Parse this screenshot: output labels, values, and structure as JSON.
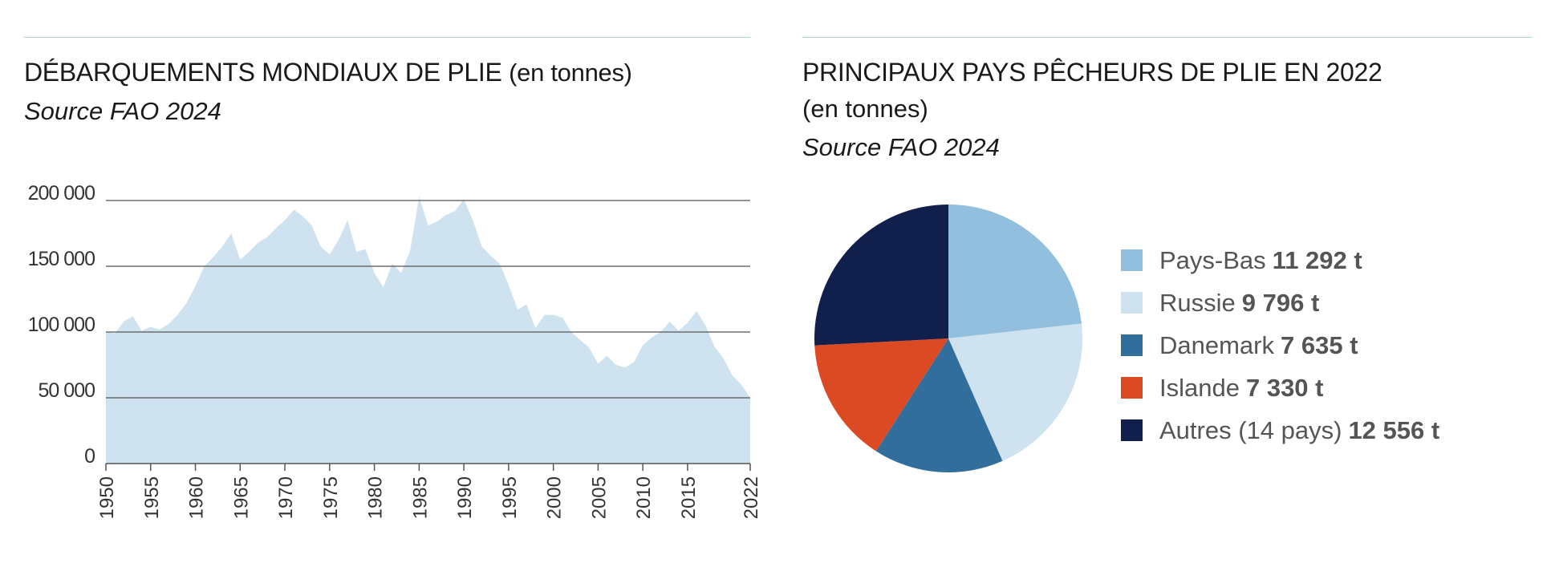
{
  "left": {
    "title_main": "DÉBARQUEMENTS MONDIAUX DE PLIE",
    "title_unit": "(en tonnes)",
    "source": "Source FAO 2024"
  },
  "right": {
    "title_main": "PRINCIPAUX PAYS PÊCHEURS DE PLIE EN 2022",
    "title_unit": "(en tonnes)",
    "source": "Source FAO 2024"
  },
  "chart_data": [
    {
      "type": "area",
      "title": "DÉBARQUEMENTS MONDIAUX DE PLIE (en tonnes)",
      "subtitle": "Source FAO 2024",
      "xlabel": "",
      "ylabel": "",
      "grid": true,
      "color": "#cfe2ef",
      "xlim": [
        1950,
        2022
      ],
      "ylim": [
        0,
        200000
      ],
      "y_ticks": [
        0,
        50000,
        100000,
        150000,
        200000
      ],
      "y_tick_labels": [
        "0",
        "50 000",
        "100 000",
        "150 000",
        "200 000"
      ],
      "x_ticks": [
        1950,
        1955,
        1960,
        1965,
        1970,
        1975,
        1980,
        1985,
        1990,
        1995,
        2000,
        2005,
        2010,
        2015,
        2022
      ],
      "x": [
        1950,
        1951,
        1952,
        1953,
        1954,
        1955,
        1956,
        1957,
        1958,
        1959,
        1960,
        1961,
        1962,
        1963,
        1964,
        1965,
        1966,
        1967,
        1968,
        1969,
        1970,
        1971,
        1972,
        1973,
        1974,
        1975,
        1976,
        1977,
        1978,
        1979,
        1980,
        1981,
        1982,
        1983,
        1984,
        1985,
        1986,
        1987,
        1988,
        1989,
        1990,
        1991,
        1992,
        1993,
        1994,
        1995,
        1996,
        1997,
        1998,
        1999,
        2000,
        2001,
        2002,
        2003,
        2004,
        2005,
        2006,
        2007,
        2008,
        2009,
        2010,
        2011,
        2012,
        2013,
        2014,
        2015,
        2016,
        2017,
        2018,
        2019,
        2020,
        2021,
        2022
      ],
      "values": [
        100000,
        99000,
        108000,
        112000,
        101000,
        104000,
        102000,
        106000,
        113000,
        122000,
        135000,
        150000,
        157000,
        165000,
        175000,
        155000,
        161000,
        168000,
        172000,
        179000,
        185000,
        193000,
        188000,
        181000,
        165000,
        159000,
        170000,
        185000,
        161000,
        163000,
        145000,
        134000,
        152000,
        145000,
        162000,
        203000,
        181000,
        184000,
        189000,
        192000,
        201000,
        185000,
        165000,
        158000,
        152000,
        136000,
        117000,
        121000,
        103000,
        113000,
        113000,
        111000,
        100000,
        94000,
        88000,
        76000,
        82000,
        75000,
        73000,
        77000,
        90000,
        96000,
        100000,
        108000,
        101000,
        107000,
        116000,
        105000,
        89000,
        80000,
        67000,
        60000,
        50000
      ]
    },
    {
      "type": "pie",
      "title": "PRINCIPAUX PAYS PÊCHEURS DE PLIE EN 2022 (en tonnes)",
      "subtitle": "Source FAO 2024",
      "legend_position": "right",
      "slices": [
        {
          "label": "Pays-Bas",
          "value": 11292,
          "value_label": "11 292 t",
          "color": "#92bfdd"
        },
        {
          "label": "Russie",
          "value": 9796,
          "value_label": "9 796 t",
          "color": "#cfe2ef"
        },
        {
          "label": "Danemark",
          "value": 7635,
          "value_label": "7 635 t",
          "color": "#326e9b"
        },
        {
          "label": "Islande",
          "value": 7330,
          "value_label": "7 330 t",
          "color": "#dc4a23"
        },
        {
          "label": "Autres (14 pays)",
          "value": 12556,
          "value_label": "12 556 t",
          "color": "#111f4d"
        }
      ]
    }
  ]
}
